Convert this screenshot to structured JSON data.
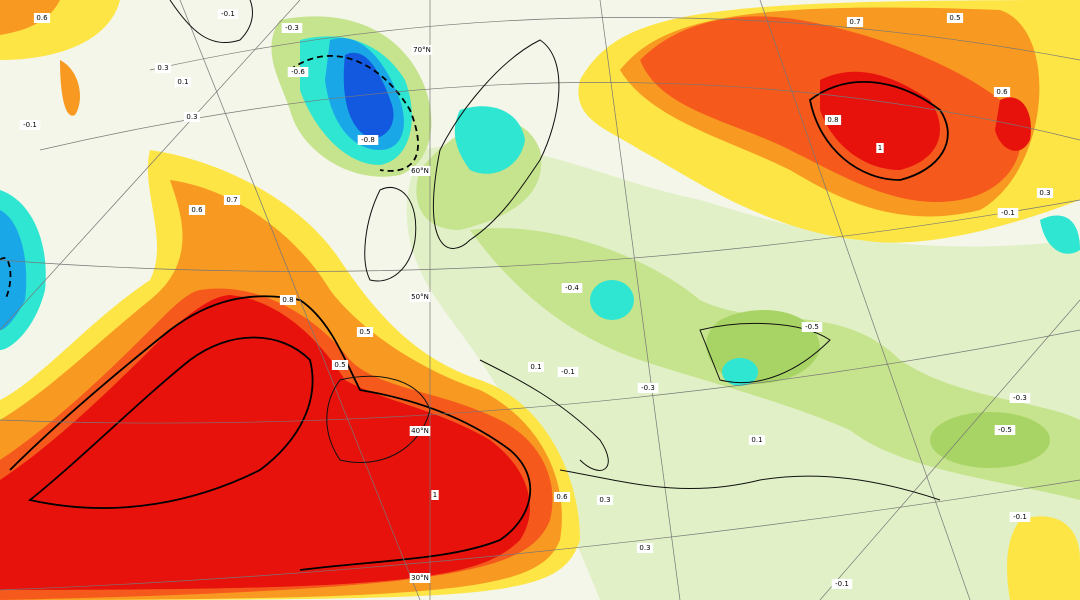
{
  "latitude_labels": [
    "70°N",
    "60°N",
    "50°N",
    "40°N",
    "30°N"
  ],
  "contour_labels": [
    "0.6",
    "-0.1",
    "-0.3",
    "0.3",
    "0.1",
    "-0.6",
    "-0.8",
    "0.3",
    "-0.1",
    "0.6",
    "0.7",
    "0.8",
    "0.5",
    "0.5",
    "0.1",
    "-0.1",
    "-0.3",
    "-0.5",
    "-0.3",
    "-0.5",
    "0.6",
    "0.3",
    "0.3",
    "-0.1",
    "-0.1",
    "0.7",
    "0.5",
    "0.6",
    "0.8",
    "1",
    "0.1",
    "-0.1",
    "0.3",
    "-0.4",
    "1"
  ]
}
